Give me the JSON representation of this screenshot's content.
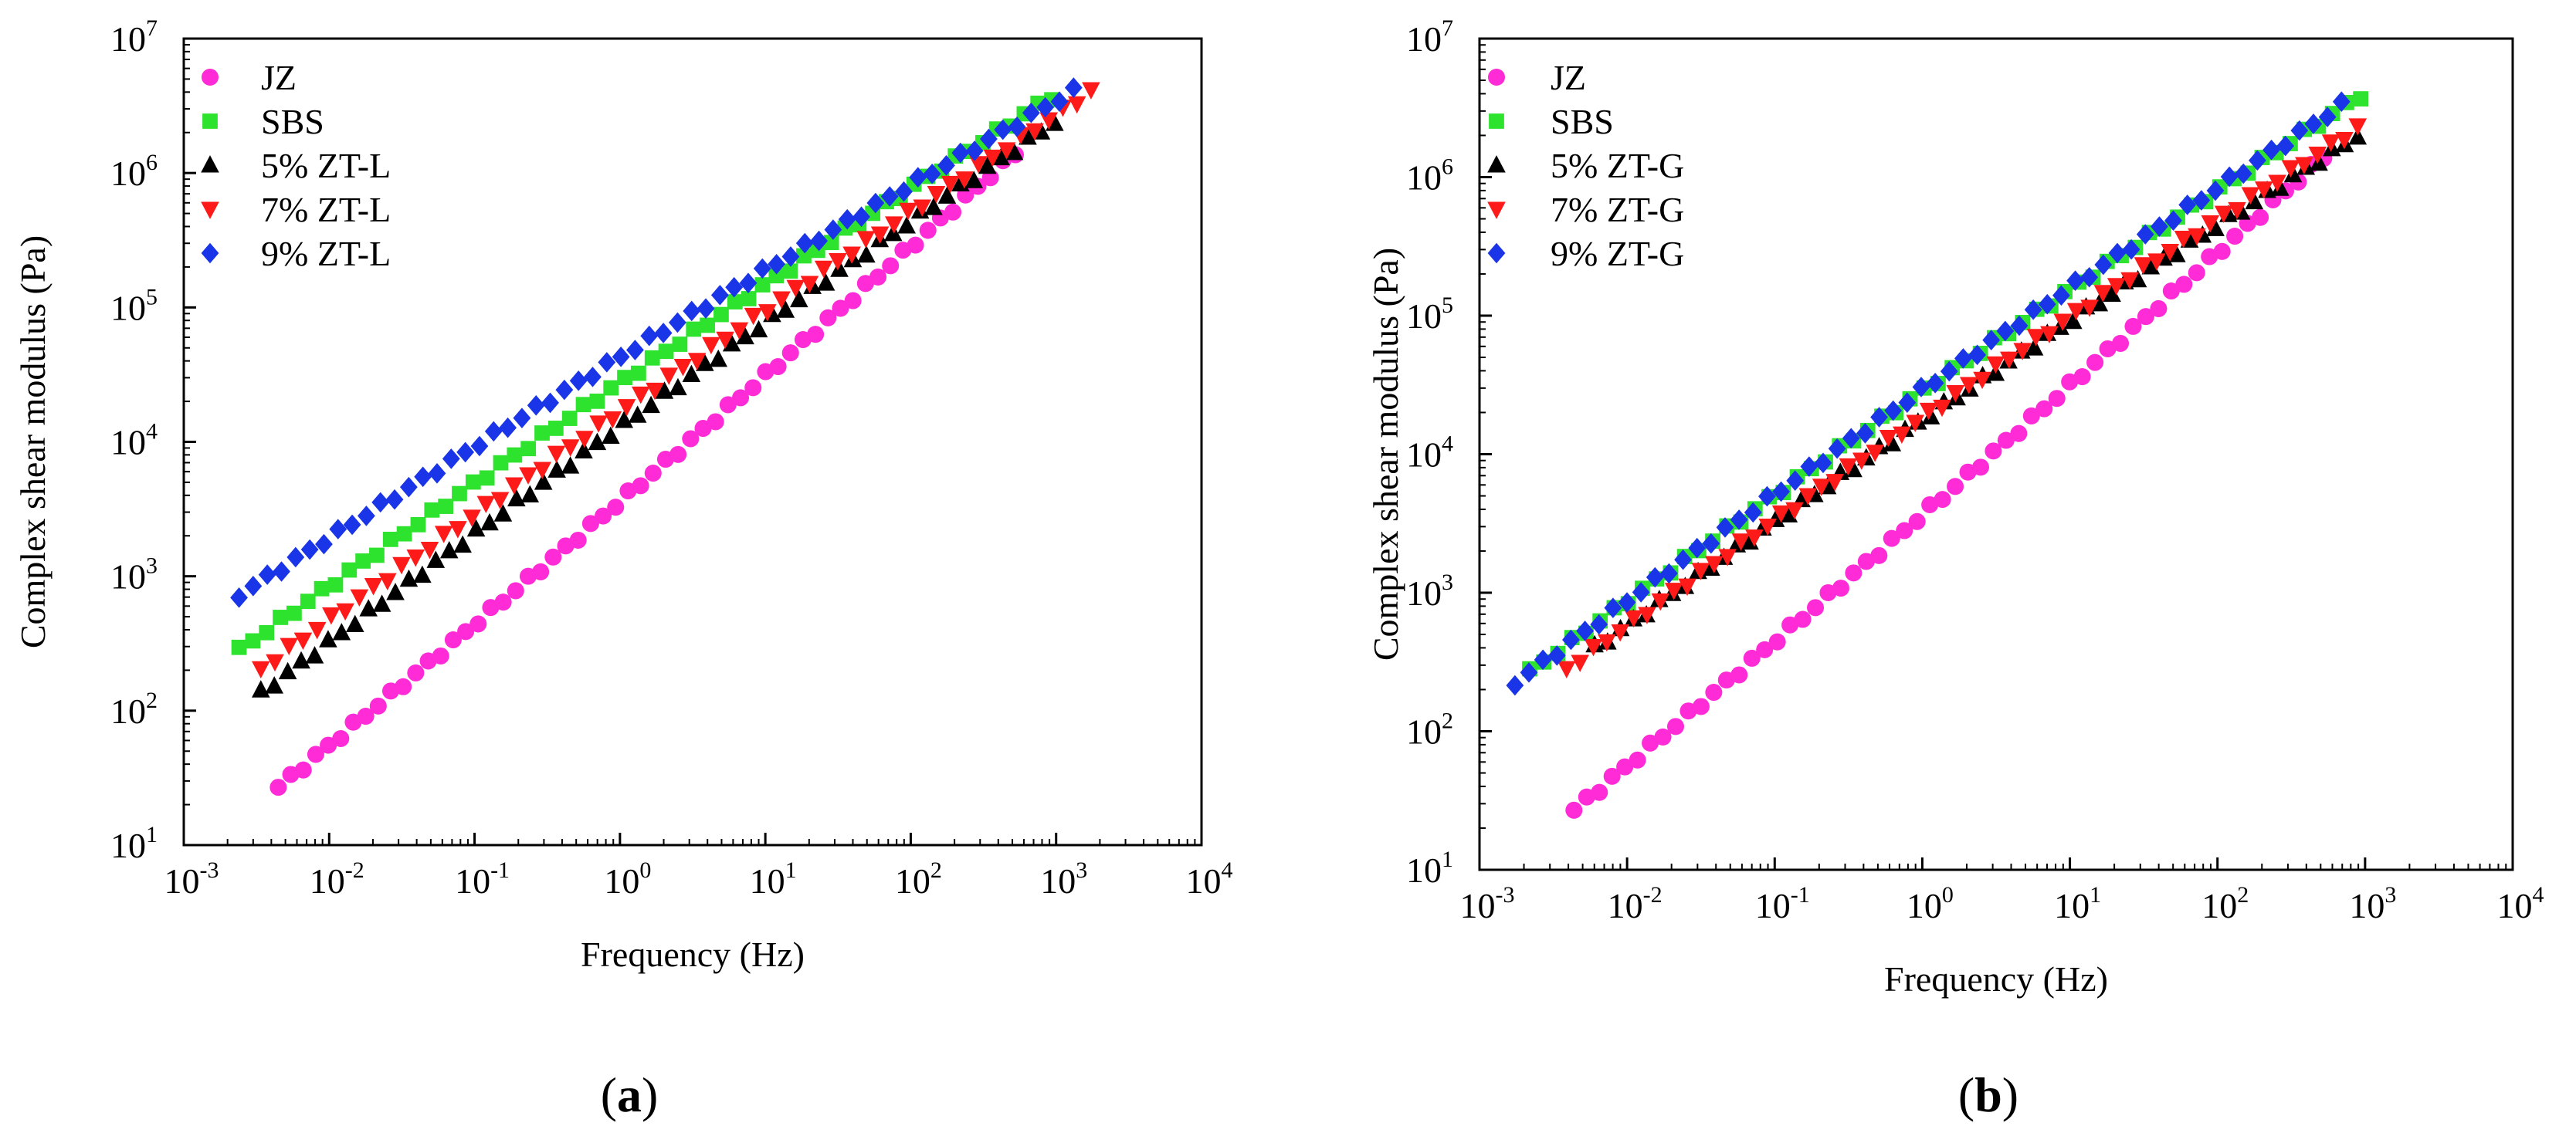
{
  "chart_data": [
    {
      "type": "scatter",
      "panel_label": "(a)",
      "xlabel": "Frequency (Hz)",
      "ylabel": "Complex shear modulus (Pa)",
      "xscale": "log",
      "yscale": "log",
      "xlim": [
        0.001,
        10000
      ],
      "ylim": [
        10,
        10000000
      ],
      "x_ticks": [
        {
          "value": 0.001,
          "base": "10",
          "exp": "-3"
        },
        {
          "value": 0.01,
          "base": "10",
          "exp": "-2"
        },
        {
          "value": 0.1,
          "base": "10",
          "exp": "-1"
        },
        {
          "value": 1,
          "base": "10",
          "exp": "0"
        },
        {
          "value": 10,
          "base": "10",
          "exp": "1"
        },
        {
          "value": 100,
          "base": "10",
          "exp": "2"
        },
        {
          "value": 1000,
          "base": "10",
          "exp": "3"
        },
        {
          "value": 10000,
          "base": "10",
          "exp": "4"
        }
      ],
      "y_ticks": [
        {
          "value": 10,
          "base": "10",
          "exp": "1"
        },
        {
          "value": 100,
          "base": "10",
          "exp": "2"
        },
        {
          "value": 1000,
          "base": "10",
          "exp": "3"
        },
        {
          "value": 10000,
          "base": "10",
          "exp": "4"
        },
        {
          "value": 100000,
          "base": "10",
          "exp": "5"
        },
        {
          "value": 1000000,
          "base": "10",
          "exp": "6"
        },
        {
          "value": 10000000,
          "base": "10",
          "exp": "7"
        }
      ],
      "legend_position": "top-left",
      "series": [
        {
          "name": "JZ",
          "marker": "circle",
          "color": "#ff2bd6",
          "log_x_range": [
            -2.35,
            2.72
          ],
          "log_y_range": [
            1.43,
            6.15
          ],
          "points": 60
        },
        {
          "name": "SBS",
          "marker": "square",
          "color": "#2ee32e",
          "log_x_range": [
            -2.62,
            2.97
          ],
          "log_y_range": [
            2.45,
            6.57
          ],
          "points": 60
        },
        {
          "name": "5% ZT-L",
          "marker": "triangle-up",
          "color": "#000000",
          "log_x_range": [
            -2.47,
            2.99
          ],
          "log_y_range": [
            2.13,
            6.38
          ],
          "points": 60
        },
        {
          "name": "7% ZT-L",
          "marker": "triangle-down",
          "color": "#ff1a1a",
          "log_x_range": [
            -2.47,
            3.24
          ],
          "log_y_range": [
            2.31,
            6.61
          ],
          "points": 60
        },
        {
          "name": "9% ZT-L",
          "marker": "diamond",
          "color": "#1a35e8",
          "log_x_range": [
            -2.62,
            3.12
          ],
          "log_y_range": [
            2.86,
            6.61
          ],
          "points": 60
        }
      ]
    },
    {
      "type": "scatter",
      "panel_label": "(b)",
      "xlabel": "Frequency (Hz)",
      "ylabel": "Complex shear modulus (Pa)",
      "xscale": "log",
      "yscale": "log",
      "xlim": [
        0.001,
        10000
      ],
      "ylim": [
        10,
        10000000
      ],
      "x_ticks": [
        {
          "value": 0.001,
          "base": "10",
          "exp": "-3"
        },
        {
          "value": 0.01,
          "base": "10",
          "exp": "-2"
        },
        {
          "value": 0.1,
          "base": "10",
          "exp": "-1"
        },
        {
          "value": 1,
          "base": "10",
          "exp": "0"
        },
        {
          "value": 10,
          "base": "10",
          "exp": "1"
        },
        {
          "value": 100,
          "base": "10",
          "exp": "2"
        },
        {
          "value": 1000,
          "base": "10",
          "exp": "3"
        },
        {
          "value": 10000,
          "base": "10",
          "exp": "4"
        }
      ],
      "y_ticks": [
        {
          "value": 10,
          "base": "10",
          "exp": "1"
        },
        {
          "value": 100,
          "base": "10",
          "exp": "2"
        },
        {
          "value": 1000,
          "base": "10",
          "exp": "3"
        },
        {
          "value": 10000,
          "base": "10",
          "exp": "4"
        },
        {
          "value": 100000,
          "base": "10",
          "exp": "5"
        },
        {
          "value": 1000000,
          "base": "10",
          "exp": "6"
        },
        {
          "value": 10000000,
          "base": "10",
          "exp": "7"
        }
      ],
      "legend_position": "top-left",
      "series": [
        {
          "name": "JZ",
          "marker": "circle",
          "color": "#ff2bd6",
          "log_x_range": [
            -2.36,
            2.72
          ],
          "log_y_range": [
            1.43,
            6.15
          ],
          "points": 60
        },
        {
          "name": "SBS",
          "marker": "square",
          "color": "#2ee32e",
          "log_x_range": [
            -2.66,
            2.97
          ],
          "log_y_range": [
            2.43,
            6.59
          ],
          "points": 60
        },
        {
          "name": "5% ZT-G",
          "marker": "triangle-up",
          "color": "#000000",
          "log_x_range": [
            -2.22,
            2.95
          ],
          "log_y_range": [
            2.6,
            6.3
          ],
          "points": 60
        },
        {
          "name": "7% ZT-G",
          "marker": "triangle-down",
          "color": "#ff1a1a",
          "log_x_range": [
            -2.41,
            2.95
          ],
          "log_y_range": [
            2.45,
            6.36
          ],
          "points": 60
        },
        {
          "name": "9% ZT-G",
          "marker": "diamond",
          "color": "#1a35e8",
          "log_x_range": [
            -2.76,
            2.84
          ],
          "log_y_range": [
            2.35,
            6.52
          ],
          "points": 60
        }
      ]
    }
  ]
}
